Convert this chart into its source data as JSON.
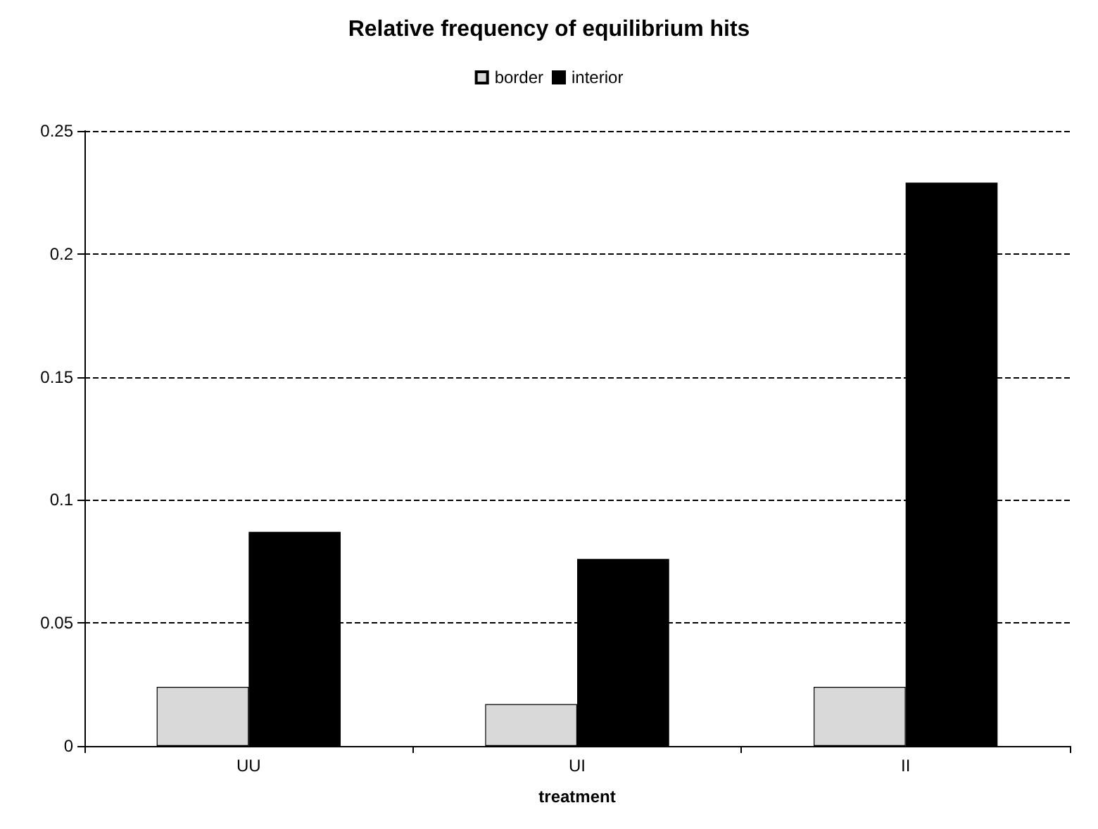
{
  "chart_data": {
    "type": "bar",
    "title": "Relative frequency of equilibrium hits",
    "xlabel": "treatment",
    "categories": [
      "UU",
      "UI",
      "II"
    ],
    "series": [
      {
        "name": "border",
        "color": "#d9d9d9",
        "values": [
          0.024,
          0.017,
          0.024
        ]
      },
      {
        "name": "interior",
        "color": "#000000",
        "values": [
          0.087,
          0.076,
          0.229
        ]
      }
    ],
    "ylim": [
      0,
      0.25
    ],
    "yticks": [
      0,
      0.05,
      0.1,
      0.15,
      0.2,
      0.25
    ],
    "grid": "y",
    "legend": "top"
  }
}
